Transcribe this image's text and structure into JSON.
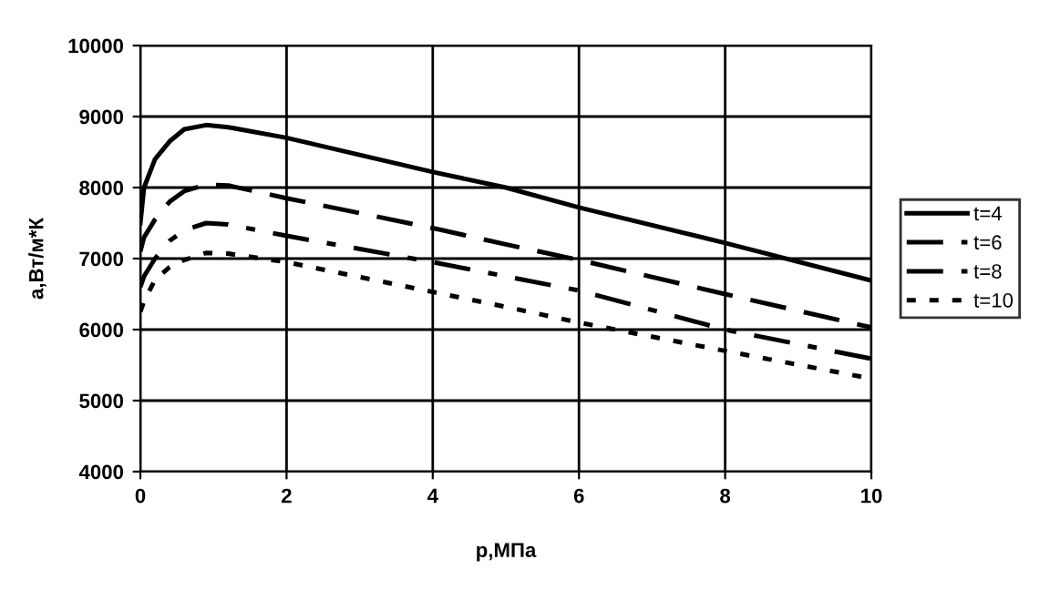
{
  "chart_data": {
    "type": "line",
    "xlabel": "p,МПа",
    "ylabel": "a,Вт/м*К",
    "xlim": [
      0,
      10
    ],
    "ylim": [
      4000,
      10000
    ],
    "xticks": [
      0,
      2,
      4,
      6,
      8,
      10
    ],
    "yticks": [
      4000,
      5000,
      6000,
      7000,
      8000,
      9000,
      10000
    ],
    "grid": true,
    "legend": "right",
    "marker": "none",
    "x": [
      0,
      0.05,
      0.2,
      0.4,
      0.6,
      0.9,
      1.2,
      2,
      4,
      5,
      6,
      8,
      10
    ],
    "series": [
      {
        "name": "t=4",
        "color": "#000000",
        "line_style": "solid",
        "values": [
          7500,
          8000,
          8400,
          8650,
          8820,
          8880,
          8850,
          8700,
          8220,
          8000,
          7720,
          7220,
          6690
        ]
      },
      {
        "name": "t=6",
        "color": "#000000",
        "line_style": "dashed",
        "values": [
          7100,
          7300,
          7550,
          7800,
          7950,
          8040,
          8030,
          7850,
          7430,
          7200,
          6980,
          6500,
          6030
        ]
      },
      {
        "name": "t=8",
        "color": "#000000",
        "line_style": "dashdot",
        "values": [
          6600,
          6750,
          7000,
          7250,
          7400,
          7500,
          7480,
          7320,
          6950,
          6750,
          6550,
          6000,
          5590
        ]
      },
      {
        "name": "t=10",
        "color": "#000000",
        "line_style": "dotted",
        "values": [
          6250,
          6400,
          6700,
          6880,
          6980,
          7080,
          7070,
          6950,
          6530,
          6320,
          6100,
          5700,
          5310
        ]
      }
    ]
  }
}
